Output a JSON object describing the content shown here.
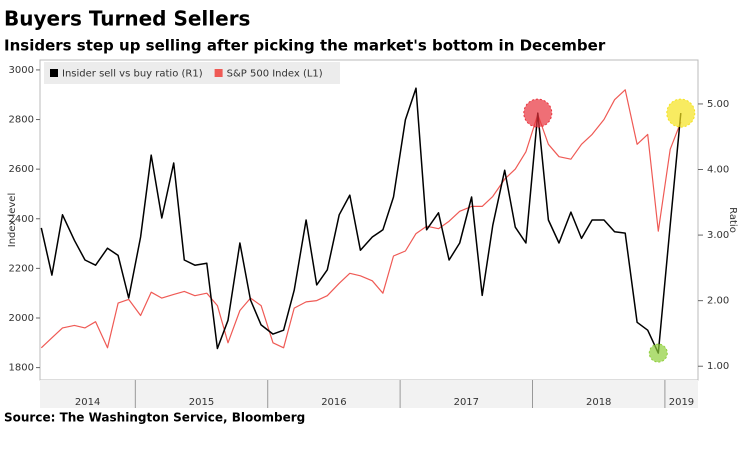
{
  "chart_data": {
    "type": "line",
    "title": "Buyers Turned Sellers",
    "subtitle": "Insiders step up selling after picking the market's bottom in December",
    "source": "Source: The Washington Service, Bloomberg",
    "y_label": "Index level",
    "y2_label": "Ratio",
    "legend": "top-left",
    "x": [
      2014.29,
      2014.37,
      2014.45,
      2014.54,
      2014.62,
      2014.7,
      2014.79,
      2014.87,
      2014.95,
      2015.04,
      2015.12,
      2015.2,
      2015.29,
      2015.37,
      2015.45,
      2015.54,
      2015.62,
      2015.7,
      2015.79,
      2015.87,
      2015.95,
      2016.04,
      2016.12,
      2016.2,
      2016.29,
      2016.37,
      2016.45,
      2016.54,
      2016.62,
      2016.7,
      2016.79,
      2016.87,
      2016.95,
      2017.04,
      2017.12,
      2017.2,
      2017.29,
      2017.37,
      2017.45,
      2017.54,
      2017.62,
      2017.7,
      2017.79,
      2017.87,
      2017.95,
      2018.04,
      2018.12,
      2018.2,
      2018.29,
      2018.37,
      2018.45,
      2018.54,
      2018.62,
      2018.7,
      2018.79,
      2018.87,
      2018.95,
      2019.04,
      2019.12
    ],
    "xlim": [
      2014.28,
      2019.25
    ],
    "xticks": [
      {
        "value": 2014,
        "label": "2014"
      },
      {
        "value": 2015,
        "label": "2015"
      },
      {
        "value": 2016,
        "label": "2016"
      },
      {
        "value": 2017,
        "label": "2017"
      },
      {
        "value": 2018,
        "label": "2018"
      },
      {
        "value": 2019,
        "label": "2019"
      }
    ],
    "ylim": [
      1750,
      3040
    ],
    "yticks": [
      1800,
      2000,
      2200,
      2400,
      2600,
      2800,
      3000
    ],
    "y2lim": [
      0.79,
      5.67
    ],
    "y2ticks": [
      {
        "value": 1,
        "label": "1.00"
      },
      {
        "value": 2,
        "label": "2.00"
      },
      {
        "value": 3,
        "label": "3.00"
      },
      {
        "value": 4,
        "label": "4.00"
      },
      {
        "value": 5,
        "label": "5.00"
      }
    ],
    "series": [
      {
        "name": "Insider sell vs buy ratio (R1)",
        "color": "#000000",
        "axis": "y2",
        "values": [
          3.11,
          2.39,
          3.31,
          2.92,
          2.62,
          2.54,
          2.8,
          2.69,
          2.04,
          2.97,
          4.22,
          3.26,
          4.1,
          2.62,
          2.54,
          2.57,
          1.27,
          1.7,
          2.88,
          2.01,
          1.63,
          1.49,
          1.55,
          2.16,
          3.23,
          2.24,
          2.47,
          3.31,
          3.61,
          2.77,
          2.97,
          3.08,
          3.58,
          4.76,
          5.24,
          3.08,
          3.34,
          2.62,
          2.88,
          3.58,
          2.08,
          3.15,
          3.99,
          3.12,
          2.88,
          4.86,
          3.23,
          2.88,
          3.35,
          2.95,
          3.23,
          3.23,
          3.05,
          3.03,
          1.67,
          1.55,
          1.2,
          3.15,
          4.86
        ]
      },
      {
        "name": "S&P 500 Index (L1)",
        "color": "#ef5a55",
        "axis": "y",
        "values": [
          1880,
          1920,
          1960,
          1970,
          1960,
          1985,
          1880,
          2060,
          2075,
          2010,
          2104,
          2080,
          2095,
          2107,
          2090,
          2100,
          2050,
          1900,
          2030,
          2080,
          2050,
          1900,
          1880,
          2040,
          2065,
          2070,
          2090,
          2140,
          2180,
          2170,
          2150,
          2100,
          2250,
          2270,
          2340,
          2370,
          2360,
          2390,
          2430,
          2450,
          2450,
          2490,
          2560,
          2600,
          2670,
          2820,
          2700,
          2650,
          2640,
          2700,
          2740,
          2800,
          2880,
          2920,
          2700,
          2740,
          2350,
          2680,
          2790
        ]
      }
    ]
  }
}
